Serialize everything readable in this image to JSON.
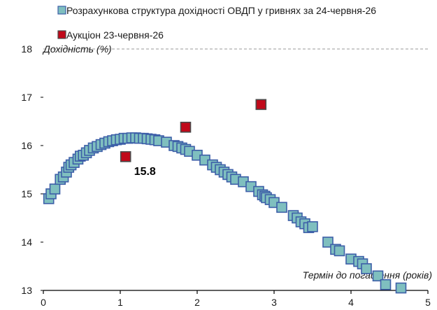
{
  "chart_data": {
    "type": "scatter",
    "xlabel": "Термін до погашення (років)",
    "ylabel": "Дохідність (%)",
    "xlim": [
      0,
      5
    ],
    "ylim": [
      13,
      18
    ],
    "x_ticks": [
      "0",
      "1",
      "2",
      "3",
      "4",
      "5"
    ],
    "y_ticks": [
      "13",
      "14",
      "15",
      "16",
      "17",
      "18"
    ],
    "grid": "dashed horizontal line at y=18",
    "legend_placement": "top-left",
    "series": [
      {
        "name": "Розрахункова структура дохідності ОВДП у гривнях за 24-червня-26",
        "color": "#7fbfbf",
        "border_color": "#3d5fa8",
        "marker": "square",
        "points": [
          [
            0.07,
            14.9
          ],
          [
            0.1,
            15.0
          ],
          [
            0.15,
            15.1
          ],
          [
            0.22,
            15.3
          ],
          [
            0.26,
            15.35
          ],
          [
            0.3,
            15.45
          ],
          [
            0.33,
            15.55
          ],
          [
            0.36,
            15.6
          ],
          [
            0.4,
            15.65
          ],
          [
            0.45,
            15.72
          ],
          [
            0.48,
            15.78
          ],
          [
            0.52,
            15.8
          ],
          [
            0.56,
            15.85
          ],
          [
            0.6,
            15.9
          ],
          [
            0.65,
            15.95
          ],
          [
            0.7,
            15.98
          ],
          [
            0.75,
            16.02
          ],
          [
            0.8,
            16.05
          ],
          [
            0.85,
            16.08
          ],
          [
            0.9,
            16.1
          ],
          [
            0.95,
            16.12
          ],
          [
            1.0,
            16.13
          ],
          [
            1.05,
            16.15
          ],
          [
            1.1,
            16.15
          ],
          [
            1.15,
            16.16
          ],
          [
            1.2,
            16.16
          ],
          [
            1.25,
            16.15
          ],
          [
            1.3,
            16.15
          ],
          [
            1.35,
            16.14
          ],
          [
            1.4,
            16.13
          ],
          [
            1.45,
            16.12
          ],
          [
            1.5,
            16.1
          ],
          [
            1.6,
            16.07
          ],
          [
            1.7,
            16.0
          ],
          [
            1.75,
            15.98
          ],
          [
            1.8,
            15.95
          ],
          [
            1.85,
            15.92
          ],
          [
            1.9,
            15.88
          ],
          [
            2.0,
            15.8
          ],
          [
            2.1,
            15.7
          ],
          [
            2.2,
            15.6
          ],
          [
            2.25,
            15.55
          ],
          [
            2.3,
            15.5
          ],
          [
            2.35,
            15.45
          ],
          [
            2.4,
            15.4
          ],
          [
            2.45,
            15.35
          ],
          [
            2.5,
            15.3
          ],
          [
            2.6,
            15.25
          ],
          [
            2.7,
            15.15
          ],
          [
            2.8,
            15.05
          ],
          [
            2.85,
            14.98
          ],
          [
            2.88,
            14.95
          ],
          [
            2.9,
            14.92
          ],
          [
            2.95,
            14.88
          ],
          [
            3.0,
            14.82
          ],
          [
            3.1,
            14.72
          ],
          [
            3.25,
            14.55
          ],
          [
            3.3,
            14.5
          ],
          [
            3.35,
            14.42
          ],
          [
            3.4,
            14.38
          ],
          [
            3.45,
            14.3
          ],
          [
            3.5,
            14.32
          ],
          [
            3.7,
            14.0
          ],
          [
            3.8,
            13.85
          ],
          [
            3.85,
            13.82
          ],
          [
            4.0,
            13.65
          ],
          [
            4.1,
            13.6
          ],
          [
            4.15,
            13.55
          ],
          [
            4.2,
            13.45
          ],
          [
            4.35,
            13.3
          ],
          [
            4.45,
            13.12
          ],
          [
            4.65,
            13.05
          ]
        ]
      },
      {
        "name": "Аукціон 23-червня-26",
        "color": "#c0091a",
        "border_color": "#4a4a4a",
        "marker": "square",
        "points": [
          [
            1.07,
            15.77
          ],
          [
            1.85,
            16.38
          ],
          [
            2.83,
            16.85
          ]
        ]
      }
    ],
    "annotations": [
      {
        "text": "15.8",
        "series": 1,
        "point": 0
      }
    ]
  }
}
